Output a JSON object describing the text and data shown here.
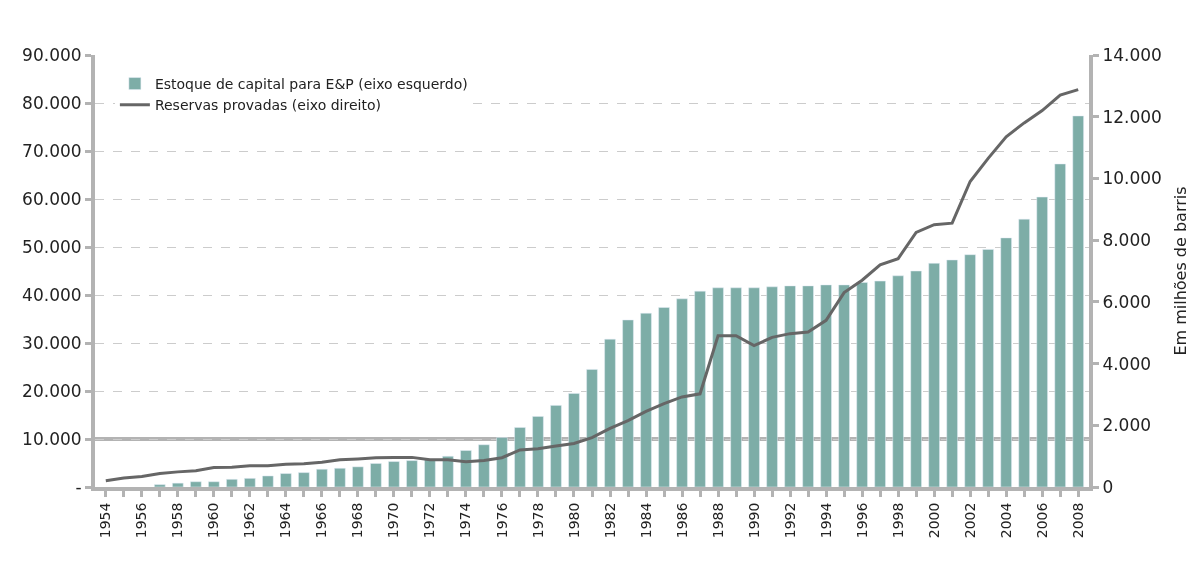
{
  "chart_data": {
    "type": "bar",
    "categories": [
      "1954",
      null,
      "1956",
      null,
      "1958",
      null,
      "1960",
      null,
      "1962",
      null,
      "1964",
      null,
      "1966",
      null,
      "1968",
      null,
      "1970",
      null,
      "1972",
      null,
      "1974",
      null,
      "1976",
      null,
      "1978",
      null,
      "1980",
      null,
      "1982",
      null,
      "1984",
      null,
      "1986",
      null,
      "1988",
      null,
      "1990",
      null,
      "1992",
      null,
      "1994",
      null,
      "1996",
      null,
      "1998",
      null,
      "2000",
      null,
      "2002",
      null,
      "2004",
      null,
      "2006",
      null,
      "2008"
    ],
    "series": [
      {
        "name": "Estoque de capital para E&P (eixo esquerdo)",
        "color": "#7dada7",
        "values": [
          null,
          null,
          null,
          500,
          800,
          1100,
          1100,
          1600,
          1800,
          2300,
          2800,
          3000,
          3700,
          3900,
          4200,
          4900,
          5300,
          5500,
          5800,
          6400,
          7600,
          8800,
          10300,
          12400,
          14700,
          17000,
          19500,
          24500,
          30800,
          34800,
          36200,
          37400,
          39200,
          40800,
          41500,
          41500,
          41500,
          41700,
          41900,
          41900,
          42100,
          42100,
          42600,
          42900,
          44000,
          45000,
          46600,
          47300,
          48400,
          49500,
          51900,
          55800,
          60400,
          67300,
          77300
        ]
      },
      {
        "name": "Reservas provadas (eixo direito)",
        "type": "line",
        "axis": "y2",
        "color": "#666666",
        "values": [
          200,
          290,
          340,
          440,
          490,
          530,
          630,
          640,
          690,
          690,
          740,
          750,
          800,
          880,
          910,
          950,
          960,
          960,
          880,
          880,
          820,
          860,
          950,
          1200,
          1240,
          1330,
          1410,
          1600,
          1900,
          2150,
          2450,
          2700,
          2920,
          3020,
          4900,
          4900,
          4580,
          4850,
          4970,
          5020,
          5400,
          6300,
          6700,
          7200,
          7400,
          8250,
          8500,
          8550,
          9900,
          10650,
          11350,
          11800,
          12200,
          12700,
          12880
        ]
      }
    ],
    "ylim": [
      0,
      90000
    ],
    "yticks": [
      {
        "value": 0,
        "label": "-"
      },
      {
        "value": 10000,
        "label": "10.000"
      },
      {
        "value": 20000,
        "label": "20.000"
      },
      {
        "value": 30000,
        "label": "30.000"
      },
      {
        "value": 40000,
        "label": "40.000"
      },
      {
        "value": 50000,
        "label": "50.000"
      },
      {
        "value": 60000,
        "label": "60.000"
      },
      {
        "value": 70000,
        "label": "70.000"
      },
      {
        "value": 80000,
        "label": "80.000"
      },
      {
        "value": 90000,
        "label": "90.000"
      }
    ],
    "y2lim": [
      0,
      14000
    ],
    "y2ticks": [
      0,
      {
        "value": 2000,
        "label": "2.000"
      },
      {
        "value": 4000,
        "label": "4.000"
      },
      {
        "value": 6000,
        "label": "6.000"
      },
      {
        "value": 8000,
        "label": "8.000"
      },
      {
        "value": 10000,
        "label": "10.000"
      },
      {
        "value": 12000,
        "label": "12.000"
      },
      {
        "value": 14000,
        "label": "14.000"
      }
    ],
    "y2label": "Em milhões de barris",
    "ref_lines": [
      {
        "axis": "y",
        "value": 10000,
        "color": "#b3b3b3"
      }
    ],
    "grid": "y",
    "legend": "top left"
  }
}
